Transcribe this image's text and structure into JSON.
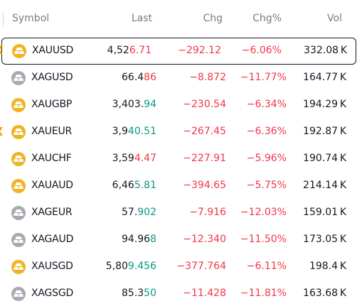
{
  "header": {
    "symbol": "Symbol",
    "last": "Last",
    "chg": "Chg",
    "chg_pct": "Chg%",
    "vol": "Vol"
  },
  "colors": {
    "down": "#f23645",
    "up": "#089981",
    "gold_coin": "#f0b323",
    "silver_coin": "#a7a9b3",
    "flag": "#f7a600"
  },
  "rows": [
    {
      "symbol": "XAUUSD",
      "coin": "gold-coin-icon",
      "flagged": true,
      "selected": true,
      "last_prefix": "4,52",
      "last_suffix": "6.71",
      "tick": "down",
      "chg": "−292.12",
      "chg_pct": "−6.06%",
      "vol": "332.08 K"
    },
    {
      "symbol": "XAGUSD",
      "coin": "silver-coin-icon",
      "flagged": false,
      "selected": false,
      "last_prefix": "66.4",
      "last_suffix": "86",
      "tick": "down",
      "chg": "−8.872",
      "chg_pct": "−11.77%",
      "vol": "164.77 K"
    },
    {
      "symbol": "XAUGBP",
      "coin": "gold-coin-icon",
      "flagged": false,
      "selected": false,
      "last_prefix": "3,403.",
      "last_suffix": "94",
      "tick": "up",
      "chg": "−230.54",
      "chg_pct": "−6.34%",
      "vol": "194.29 K"
    },
    {
      "symbol": "XAUEUR",
      "coin": "gold-coin-icon",
      "flagged": true,
      "selected": false,
      "last_prefix": "3,9",
      "last_suffix": "40.51",
      "tick": "up",
      "chg": "−267.45",
      "chg_pct": "−6.36%",
      "vol": "192.87 K"
    },
    {
      "symbol": "XAUCHF",
      "coin": "gold-coin-icon",
      "flagged": false,
      "selected": false,
      "last_prefix": "3,59",
      "last_suffix": "4.47",
      "tick": "down",
      "chg": "−227.91",
      "chg_pct": "−5.96%",
      "vol": "190.74 K"
    },
    {
      "symbol": "XAUAUD",
      "coin": "gold-coin-icon",
      "flagged": false,
      "selected": false,
      "last_prefix": "6,46",
      "last_suffix": "5.81",
      "tick": "up",
      "chg": "−394.65",
      "chg_pct": "−5.75%",
      "vol": "214.14 K"
    },
    {
      "symbol": "XAGEUR",
      "coin": "silver-coin-icon",
      "flagged": false,
      "selected": false,
      "last_prefix": "57.",
      "last_suffix": "902",
      "tick": "up",
      "chg": "−7.916",
      "chg_pct": "−12.03%",
      "vol": "159.01 K"
    },
    {
      "symbol": "XAGAUD",
      "coin": "silver-coin-icon",
      "flagged": false,
      "selected": false,
      "last_prefix": "94.96",
      "last_suffix": "8",
      "tick": "up",
      "chg": "−12.340",
      "chg_pct": "−11.50%",
      "vol": "173.05 K"
    },
    {
      "symbol": "XAUSGD",
      "coin": "gold-coin-icon",
      "flagged": false,
      "selected": false,
      "last_prefix": "5,80",
      "last_suffix": "9.456",
      "tick": "up",
      "chg": "−377.764",
      "chg_pct": "−6.11%",
      "vol": "198.4 K"
    },
    {
      "symbol": "XAGSGD",
      "coin": "silver-coin-icon",
      "flagged": false,
      "selected": false,
      "last_prefix": "85.3",
      "last_suffix": "50",
      "tick": "up",
      "chg": "−11.428",
      "chg_pct": "−11.81%",
      "vol": "163.68 K"
    }
  ]
}
